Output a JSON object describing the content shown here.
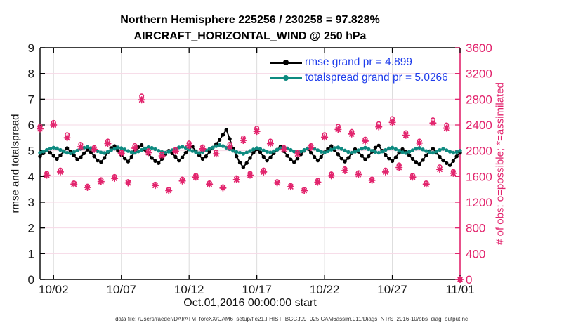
{
  "footer": "data file: /Users/raeder/DAI/ATM_forcXX/CAM6_setup/f.e21.FHIST_BGC.f09_025.CAM6assim.011/Diags_NTrS_2016-10/obs_diag_output.nc",
  "colors": {
    "rmse": "#000000",
    "totalspread": "#0e8a80",
    "obs": "#e2246d",
    "legend_text": "#1e3ceb",
    "grid_horizontal": "#f6d8e6",
    "grid_vertical": "#dcdcdc",
    "axis": "#000000",
    "tick_label": "#1a1a1a"
  },
  "chart_data": {
    "type": "line",
    "title": "Northern Hemisphere 225256 / 230258 = 97.828%",
    "subtitle": "AIRCRAFT_HORIZONTAL_WIND @ 250 hPa",
    "xlabel": "Oct.01,2016 00:00:00 start",
    "ylabel_left": "rmse and totalspread",
    "ylabel_right": "# of obs: o=possible; *=assimilated",
    "x_range_days": [
      0,
      31
    ],
    "x_tick_days": [
      1,
      6,
      11,
      16,
      21,
      26,
      31
    ],
    "x_tick_labels": [
      "10/02",
      "10/07",
      "10/12",
      "10/17",
      "10/22",
      "10/27",
      "11/01"
    ],
    "ylim_left": [
      0,
      9
    ],
    "ytick_step_left": 1,
    "ylim_right": [
      0,
      3600
    ],
    "ytick_step_right": 400,
    "grid": true,
    "legend_position": "top-right-inside",
    "legend": [
      {
        "label": "rmse grand pr = 4.899",
        "series": "rmse",
        "grand_pr": 4.899
      },
      {
        "label": "totalspread grand pr = 5.0266",
        "series": "totalspread",
        "grand_pr": 5.0266
      }
    ],
    "series": [
      {
        "name": "rmse",
        "axis": "left",
        "marker": "dot-line",
        "x_start_day": 0,
        "x_step_days": 0.25,
        "values": [
          4.78,
          4.9,
          5.02,
          4.92,
          4.8,
          4.68,
          4.82,
          4.98,
          5.1,
          4.96,
          4.82,
          4.66,
          4.74,
          4.9,
          5.04,
          4.94,
          4.78,
          4.62,
          4.56,
          4.72,
          4.94,
          5.1,
          5.18,
          5.0,
          4.84,
          4.7,
          4.58,
          4.76,
          4.96,
          5.14,
          5.22,
          5.04,
          4.88,
          4.72,
          4.6,
          4.52,
          4.68,
          4.86,
          5.0,
          4.9,
          4.76,
          4.62,
          4.74,
          4.92,
          5.06,
          5.16,
          4.98,
          4.82,
          4.68,
          4.78,
          4.96,
          5.12,
          5.26,
          5.42,
          5.62,
          5.81,
          5.46,
          5.08,
          4.78,
          4.54,
          4.36,
          4.52,
          4.72,
          4.92,
          5.06,
          4.94,
          4.76,
          4.62,
          4.74,
          4.9,
          5.04,
          5.16,
          4.98,
          4.8,
          4.66,
          4.56,
          4.7,
          4.86,
          5.0,
          5.08,
          4.92,
          4.76,
          4.62,
          4.76,
          4.94,
          5.08,
          5.18,
          5.02,
          4.86,
          4.7,
          4.58,
          4.72,
          4.9,
          5.06,
          4.96,
          4.8,
          4.66,
          4.78,
          4.96,
          5.12,
          5.2,
          5.0,
          4.84,
          4.7,
          4.6,
          4.74,
          4.92,
          5.06,
          4.96,
          4.82,
          4.68,
          4.56,
          4.48,
          4.64,
          4.82,
          4.98,
          5.08,
          4.92,
          4.76,
          4.62,
          4.52,
          4.44,
          4.6,
          4.78,
          4.92
        ]
      },
      {
        "name": "totalspread",
        "axis": "left",
        "marker": "dot-line",
        "x_start_day": 0,
        "x_step_days": 0.25,
        "values": [
          4.92,
          4.97,
          5.03,
          5.08,
          5.12,
          5.09,
          5.03,
          4.97,
          4.92,
          4.9,
          4.95,
          5.01,
          5.07,
          5.12,
          5.15,
          5.1,
          5.04,
          4.98,
          4.93,
          4.91,
          4.96,
          5.02,
          5.08,
          5.13,
          5.1,
          5.05,
          4.99,
          4.94,
          4.92,
          4.97,
          5.03,
          5.09,
          5.14,
          5.11,
          5.06,
          5.0,
          4.95,
          4.92,
          4.96,
          5.02,
          5.08,
          5.13,
          5.16,
          5.11,
          5.05,
          4.99,
          4.94,
          4.91,
          4.95,
          5.01,
          5.07,
          5.12,
          5.18,
          5.22,
          5.18,
          5.12,
          5.06,
          5.0,
          4.95,
          4.92,
          4.88,
          4.93,
          4.99,
          5.05,
          5.1,
          5.07,
          5.01,
          4.96,
          4.93,
          4.98,
          5.04,
          5.1,
          5.14,
          5.09,
          5.03,
          4.97,
          4.93,
          4.97,
          5.03,
          5.09,
          5.13,
          5.08,
          5.02,
          4.96,
          4.93,
          4.98,
          5.04,
          5.1,
          5.13,
          5.07,
          5.01,
          4.95,
          4.92,
          4.96,
          5.02,
          5.08,
          5.12,
          5.06,
          5.0,
          4.95,
          4.92,
          4.97,
          5.03,
          5.09,
          5.12,
          5.06,
          5.0,
          4.94,
          4.91,
          4.96,
          5.02,
          5.08,
          5.11,
          5.05,
          4.99,
          4.94,
          4.92,
          4.97,
          5.03,
          5.07,
          5.02,
          4.96,
          4.92,
          4.95,
          5.0
        ]
      },
      {
        "name": "N possible",
        "axis": "right",
        "marker": "o",
        "x_start_day": 0,
        "x_step_days": 0.5,
        "values": [
          2380,
          1650,
          2440,
          1700,
          2250,
          1500,
          2100,
          1450,
          2050,
          1550,
          2150,
          1600,
          1980,
          1520,
          2080,
          2850,
          2000,
          1480,
          1950,
          1400,
          2020,
          1560,
          2120,
          1620,
          2060,
          1500,
          1980,
          1440,
          2100,
          1580,
          2200,
          1650,
          2350,
          1700,
          2150,
          1520,
          2050,
          1460,
          1980,
          1400,
          2080,
          1540,
          2250,
          1640,
          2380,
          1720,
          2300,
          1660,
          2180,
          1560,
          2420,
          1700,
          2500,
          1780,
          2280,
          1620,
          2150,
          1500,
          2480,
          1750,
          2400,
          1680,
          0
        ]
      },
      {
        "name": "N assimilated",
        "axis": "right",
        "marker": "*",
        "x_start_day": 0,
        "x_step_days": 0.5,
        "values": [
          2340,
          1620,
          2400,
          1670,
          2200,
          1480,
          2060,
          1430,
          2020,
          1520,
          2110,
          1570,
          1960,
          1500,
          2040,
          2790,
          1970,
          1460,
          1920,
          1380,
          1990,
          1530,
          2080,
          1590,
          2030,
          1480,
          1950,
          1420,
          2060,
          1550,
          2160,
          1620,
          2300,
          1670,
          2110,
          1500,
          2020,
          1440,
          1950,
          1380,
          2050,
          1510,
          2210,
          1610,
          2330,
          1690,
          2260,
          1630,
          2150,
          1540,
          2370,
          1670,
          2440,
          1740,
          2240,
          1590,
          2120,
          1480,
          2430,
          1710,
          2350,
          1650,
          0
        ]
      }
    ]
  }
}
